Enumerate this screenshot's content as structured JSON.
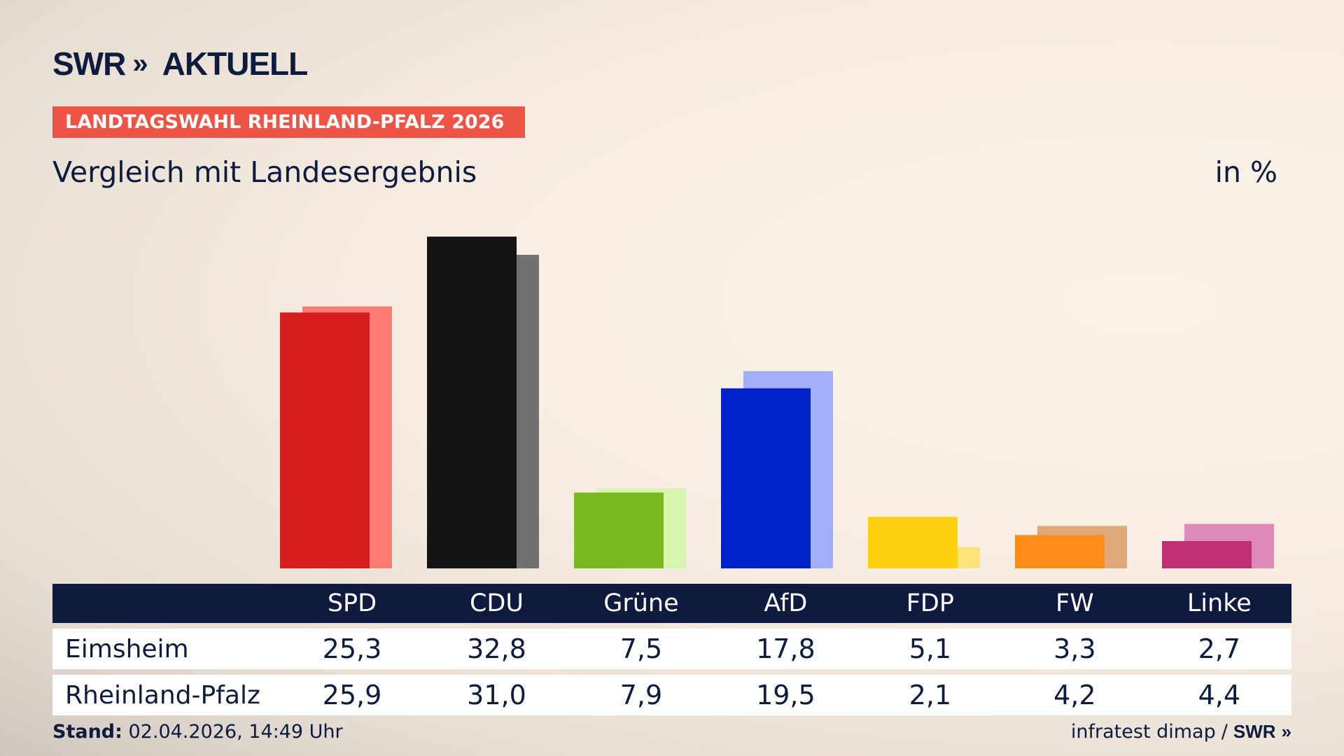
{
  "brand": {
    "name": "SWR",
    "chevrons": "»",
    "product": "AKTUELL"
  },
  "badge": "LANDTAGSWAHL RHEINLAND-PFALZ 2026",
  "subtitle": "Vergleich mit Landesergebnis",
  "unit": "in %",
  "chart_data": {
    "type": "bar",
    "categories": [
      "SPD",
      "CDU",
      "Grüne",
      "AfD",
      "FDP",
      "FW",
      "Linke"
    ],
    "series": [
      {
        "name": "Eimsheim",
        "values": [
          25.3,
          32.8,
          7.5,
          17.8,
          5.1,
          3.3,
          2.7
        ]
      },
      {
        "name": "Rheinland-Pfalz",
        "values": [
          25.9,
          31.0,
          7.9,
          19.5,
          2.1,
          4.2,
          4.4
        ]
      }
    ],
    "colors": {
      "primary": [
        "#d71f20",
        "#141414",
        "#7aba1e",
        "#0020c8",
        "#fecf0f",
        "#fd8c1a",
        "#be2f73"
      ],
      "secondary": [
        "#ff7a72",
        "#727170",
        "#d7f5ae",
        "#a0aefc",
        "#fee37a",
        "#dfa878",
        "#df8ab8"
      ]
    },
    "ylim": [
      0,
      34
    ]
  },
  "table": {
    "header": [
      "SPD",
      "CDU",
      "Grüne",
      "AfD",
      "FDP",
      "FW",
      "Linke"
    ],
    "rows": [
      {
        "label": "Eimsheim",
        "values": [
          "25,3",
          "32,8",
          "7,5",
          "17,8",
          "5,1",
          "3,3",
          "2,7"
        ]
      },
      {
        "label": "Rheinland-Pfalz",
        "values": [
          "25,9",
          "31,0",
          "7,9",
          "19,5",
          "2,1",
          "4,2",
          "4,4"
        ]
      }
    ]
  },
  "footer": {
    "stand_label": "Stand:",
    "stand_value": "02.04.2026, 14:49 Uhr",
    "source": "infratest dimap",
    "separator": "/",
    "source_brand": "SWR"
  }
}
